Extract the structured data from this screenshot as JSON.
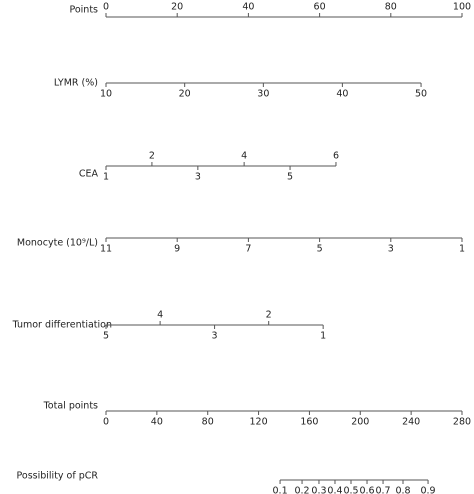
{
  "chart_data": {
    "type": "nomogram",
    "rows": [
      {
        "label": "Points",
        "scale": "points",
        "labels": "above",
        "ticks": [
          0,
          20,
          40,
          60,
          80,
          100
        ]
      },
      {
        "label": "LYMR (%)",
        "scale": "points",
        "labels": "below",
        "ticks": [
          10,
          20,
          30,
          40,
          50
        ],
        "positions": [
          0,
          22.1,
          44.2,
          66.4,
          88.5
        ]
      },
      {
        "label": "CEA",
        "scale": "points",
        "labels": "alternate",
        "ticks": [
          1,
          2,
          3,
          4,
          5,
          6
        ],
        "positions": [
          0,
          12.9,
          25.8,
          38.8,
          51.7,
          64.6
        ]
      },
      {
        "label": "Monocyte (10⁹/L)",
        "scale": "points",
        "labels": "below",
        "ticks": [
          11,
          9,
          7,
          5,
          3,
          1
        ],
        "positions": [
          0,
          20,
          40,
          60,
          80,
          100
        ]
      },
      {
        "label": "Tumor differentiation",
        "scale": "points",
        "labels": "alternate",
        "ticks": [
          5,
          4,
          3,
          2,
          1
        ],
        "positions": [
          0,
          15.2,
          30.5,
          45.7,
          61
        ]
      },
      {
        "label": "Total points",
        "scale": "total",
        "labels": "below",
        "ticks": [
          0,
          40,
          80,
          120,
          160,
          200,
          240,
          280
        ]
      },
      {
        "label": "Possibility of pCR",
        "scale": "total",
        "labels": "below",
        "ticks": [
          0.1,
          0.2,
          0.3,
          0.4,
          0.5,
          0.6,
          0.7,
          0.8,
          0.9
        ],
        "positions": [
          136.9,
          154.2,
          167.5,
          180.1,
          192.7,
          205.3,
          217.9,
          233.6,
          253.3
        ]
      }
    ],
    "points_lim": [
      0,
      100
    ],
    "total_lim": [
      0,
      280
    ]
  }
}
